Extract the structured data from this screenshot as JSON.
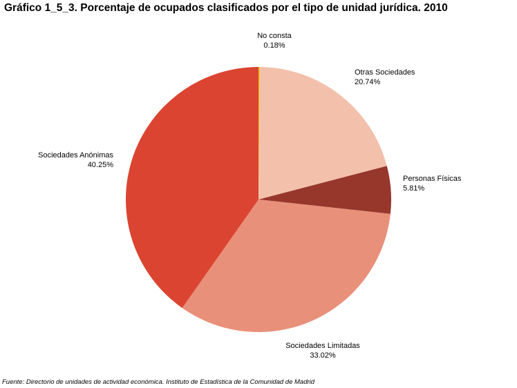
{
  "chart_data": {
    "type": "pie",
    "title": "Gráfico 1_5_3. Porcentaje de ocupados clasificados por el tipo de unidad jurídica. 2010",
    "slices": [
      {
        "label": "No consta",
        "value": 0.18,
        "value_label": "0.18%",
        "color": "#f2c12e"
      },
      {
        "label": "Otras Sociedades",
        "value": 20.74,
        "value_label": "20.74%",
        "color": "#f3c0ab"
      },
      {
        "label": "Personas Físicas",
        "value": 5.81,
        "value_label": "5.81%",
        "color": "#97372c"
      },
      {
        "label": "Sociedades Limitadas",
        "value": 33.02,
        "value_label": "33.02%",
        "color": "#e9907a"
      },
      {
        "label": "Sociedades Anónimas",
        "value": 40.25,
        "value_label": "40.25%",
        "color": "#db4431"
      }
    ],
    "start_angle": "12 o'clock",
    "direction": "clockwise",
    "legend": "none, labels beside slices",
    "source": "Fuente: Directorio de unidades de actividad económica. Instituto de Estadística de la Comunidad de Madrid"
  }
}
